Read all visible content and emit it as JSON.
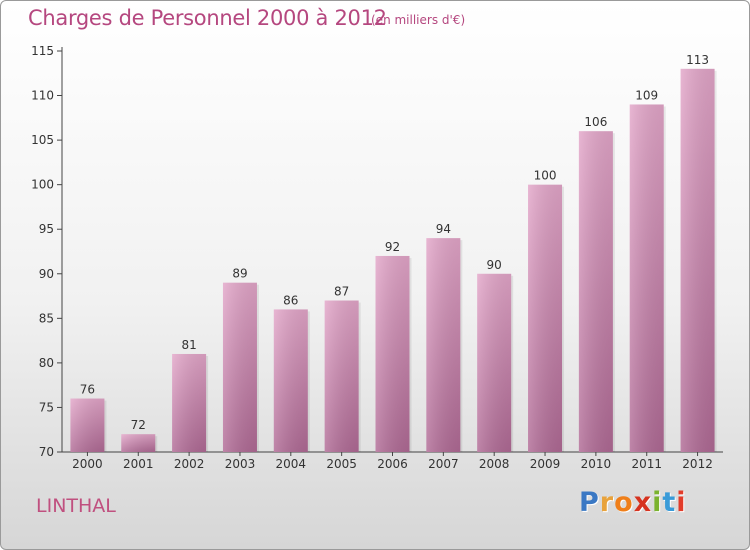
{
  "header": {
    "title": "Charges de Personnel 2000 à 2012",
    "subtitle": "(en milliers d'€)"
  },
  "footer": {
    "commune": "LINTHAL",
    "logo_letters": [
      "P",
      "r",
      "o",
      "x",
      "i",
      "t",
      "i"
    ]
  },
  "colors": {
    "text_accent": "#b5477f",
    "bar_top": "#e3a6c9",
    "bar_bottom": "#b06a95",
    "logo": [
      "#3a78c4",
      "#e8a33d",
      "#ef7f1a",
      "#d6331f",
      "#7ab32e",
      "#3a9bd8",
      "#e23c2a"
    ]
  },
  "chart_data": {
    "type": "bar",
    "categories": [
      "2000",
      "2001",
      "2002",
      "2003",
      "2004",
      "2005",
      "2006",
      "2007",
      "2008",
      "2009",
      "2010",
      "2011",
      "2012"
    ],
    "values": [
      76,
      72,
      81,
      89,
      86,
      87,
      92,
      94,
      90,
      100,
      106,
      109,
      113
    ],
    "title": "Charges de Personnel 2000 à 2012",
    "subtitle": "(en milliers d'€)",
    "ylim": [
      70,
      115
    ],
    "yticks": [
      70,
      75,
      80,
      85,
      90,
      95,
      100,
      105,
      110,
      115
    ],
    "grid": false,
    "legend": "none"
  }
}
